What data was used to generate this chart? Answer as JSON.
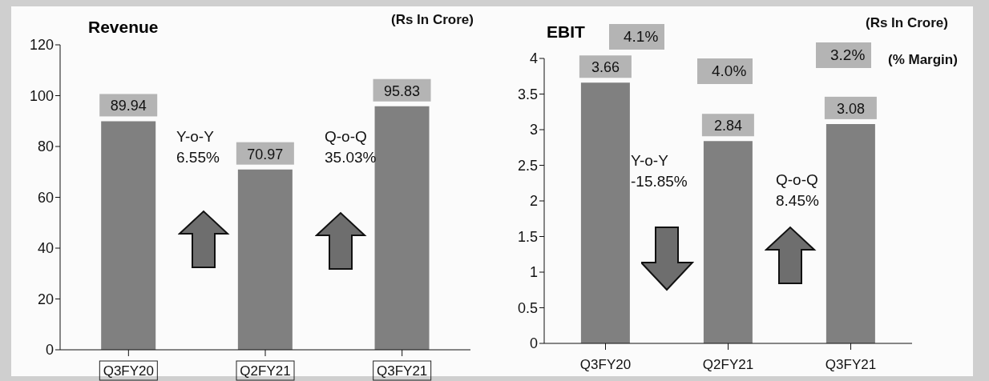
{
  "chart_data": [
    {
      "type": "bar",
      "title": "Revenue",
      "categories": [
        "Q3FY20",
        "Q2FY21",
        "Q3FY21"
      ],
      "values": [
        89.94,
        70.97,
        95.83
      ],
      "color": "#808080",
      "ylim": [
        0,
        120
      ],
      "yticks": [
        0,
        20,
        40,
        60,
        80,
        100,
        120
      ],
      "data_labels": true,
      "annotations": [
        "(Rs In Crore)",
        "Y-o-Y\n6.55%",
        "Q-o-Q\n35.03%"
      ]
    },
    {
      "type": "bar",
      "title": "EBIT",
      "categories": [
        "Q3FY20",
        "Q2FY21",
        "Q3FY21"
      ],
      "values": [
        3.66,
        2.84,
        3.08
      ],
      "color": "#808080",
      "ylim": [
        0,
        4
      ],
      "yticks": [
        0,
        0.5,
        1,
        1.5,
        2,
        2.5,
        3,
        3.5,
        4
      ],
      "data_labels": true,
      "annotations": [
        "(Rs In Crore)",
        "(% Margin)",
        "4.1%",
        "4.0%",
        "3.2%",
        "Y-o-Y\n-15.85%",
        "Q-o-Q\n8.45%"
      ]
    }
  ]
}
